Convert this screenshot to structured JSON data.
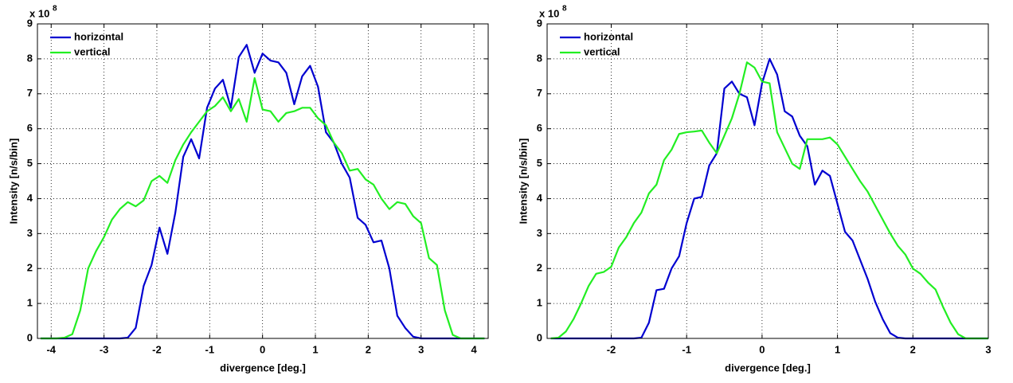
{
  "chart_data": [
    {
      "type": "line",
      "xlabel": "divergence [deg.]",
      "ylabel": "Intensity [n/s/bin]",
      "y_scale_label": "x 10",
      "y_scale_exponent": "8",
      "x": [
        -4.2,
        -4.05,
        -3.9,
        -3.75,
        -3.6,
        -3.45,
        -3.3,
        -3.15,
        -3,
        -2.85,
        -2.7,
        -2.55,
        -2.4,
        -2.25,
        -2.1,
        -1.95,
        -1.8,
        -1.65,
        -1.5,
        -1.35,
        -1.2,
        -1.05,
        -0.9,
        -0.75,
        -0.6,
        -0.45,
        -0.3,
        -0.15,
        0,
        0.15,
        0.3,
        0.45,
        0.6,
        0.75,
        0.9,
        1.05,
        1.2,
        1.35,
        1.5,
        1.65,
        1.8,
        1.95,
        2.1,
        2.25,
        2.4,
        2.55,
        2.7,
        2.85,
        3,
        3.15,
        3.3,
        3.45,
        3.6,
        3.75,
        3.9,
        4.05,
        4.2
      ],
      "series": [
        {
          "name": "horizontal",
          "color": "#0000d0",
          "values": [
            0,
            0,
            0,
            0,
            0,
            0,
            0,
            0,
            0,
            0,
            0,
            0.02,
            0.3,
            1.5,
            2.1,
            3.17,
            2.42,
            3.6,
            5.2,
            5.7,
            5.15,
            6.6,
            7.15,
            7.4,
            6.6,
            8.05,
            8.4,
            7.6,
            8.15,
            7.95,
            7.9,
            7.6,
            6.7,
            7.5,
            7.8,
            7.2,
            5.9,
            5.6,
            5.0,
            4.6,
            3.45,
            3.25,
            2.75,
            2.8,
            2.0,
            0.65,
            0.3,
            0.05,
            0,
            0,
            0,
            0,
            0,
            0,
            0,
            0,
            0
          ]
        },
        {
          "name": "vertical",
          "color": "#22ee22",
          "values": [
            0,
            0,
            0,
            0.02,
            0.12,
            0.8,
            2.0,
            2.5,
            2.9,
            3.4,
            3.7,
            3.9,
            3.78,
            3.95,
            4.5,
            4.65,
            4.45,
            5.1,
            5.55,
            5.9,
            6.2,
            6.5,
            6.65,
            6.9,
            6.5,
            6.85,
            6.2,
            7.45,
            6.55,
            6.5,
            6.2,
            6.45,
            6.5,
            6.6,
            6.6,
            6.3,
            6.1,
            5.6,
            5.3,
            4.8,
            4.85,
            4.55,
            4.4,
            4.0,
            3.7,
            3.9,
            3.85,
            3.5,
            3.3,
            2.3,
            2.1,
            0.8,
            0.1,
            0,
            0,
            0,
            0
          ]
        }
      ],
      "xlim": [
        -4.26,
        4.27
      ],
      "ylim": [
        0,
        9
      ],
      "xticks": [
        -4,
        -3,
        -2,
        -1,
        0,
        1,
        2,
        3,
        4
      ],
      "yticks": [
        0,
        1,
        2,
        3,
        4,
        5,
        6,
        7,
        8,
        9
      ],
      "grid": true,
      "legend": "upper left"
    },
    {
      "type": "line",
      "xlabel": "divergence [deg.]",
      "ylabel": "Intensity [n/s/bin]",
      "y_scale_label": "x 10",
      "y_scale_exponent": "8",
      "x": [
        -2.8,
        -2.7,
        -2.6,
        -2.5,
        -2.4,
        -2.3,
        -2.2,
        -2.1,
        -2,
        -1.9,
        -1.8,
        -1.7,
        -1.6,
        -1.5,
        -1.4,
        -1.3,
        -1.2,
        -1.1,
        -1,
        -0.9,
        -0.8,
        -0.7,
        -0.6,
        -0.5,
        -0.4,
        -0.3,
        -0.2,
        -0.1,
        0,
        0.1,
        0.2,
        0.3,
        0.4,
        0.5,
        0.6,
        0.7,
        0.8,
        0.9,
        1,
        1.1,
        1.2,
        1.3,
        1.4,
        1.5,
        1.6,
        1.7,
        1.8,
        1.9,
        2,
        2.1,
        2.2,
        2.3,
        2.4,
        2.5,
        2.6,
        2.7,
        2.8,
        2.9,
        3
      ],
      "series": [
        {
          "name": "horizontal",
          "color": "#0000d0",
          "values": [
            0,
            0,
            0,
            0,
            0,
            0,
            0,
            0,
            0,
            0,
            0,
            0,
            0.02,
            0.45,
            1.38,
            1.42,
            2.0,
            2.35,
            3.3,
            4.0,
            4.05,
            4.95,
            5.3,
            7.15,
            7.35,
            7.0,
            6.9,
            6.1,
            7.3,
            8.0,
            7.55,
            6.5,
            6.35,
            5.8,
            5.5,
            4.4,
            4.8,
            4.65,
            3.85,
            3.05,
            2.8,
            2.25,
            1.7,
            1.05,
            0.55,
            0.15,
            0.02,
            0,
            0,
            0,
            0,
            0,
            0,
            0,
            0,
            0,
            0,
            0,
            0
          ]
        },
        {
          "name": "vertical",
          "color": "#22ee22",
          "values": [
            0,
            0.02,
            0.2,
            0.55,
            1.0,
            1.5,
            1.85,
            1.9,
            2.05,
            2.6,
            2.9,
            3.3,
            3.6,
            4.15,
            4.4,
            5.1,
            5.4,
            5.85,
            5.9,
            5.92,
            5.95,
            5.6,
            5.3,
            5.8,
            6.3,
            7.0,
            7.9,
            7.75,
            7.35,
            7.3,
            5.9,
            5.45,
            5.0,
            4.85,
            5.7,
            5.7,
            5.7,
            5.75,
            5.55,
            5.2,
            4.85,
            4.5,
            4.2,
            3.8,
            3.4,
            3.0,
            2.65,
            2.4,
            2.0,
            1.85,
            1.6,
            1.4,
            0.9,
            0.45,
            0.12,
            0,
            0,
            0,
            0
          ]
        }
      ],
      "xlim": [
        -2.85,
        3
      ],
      "ylim": [
        0,
        9
      ],
      "xticks": [
        -2,
        -1,
        0,
        1,
        2,
        3
      ],
      "yticks": [
        0,
        1,
        2,
        3,
        4,
        5,
        6,
        7,
        8,
        9
      ],
      "grid": true,
      "legend": "upper left"
    }
  ]
}
